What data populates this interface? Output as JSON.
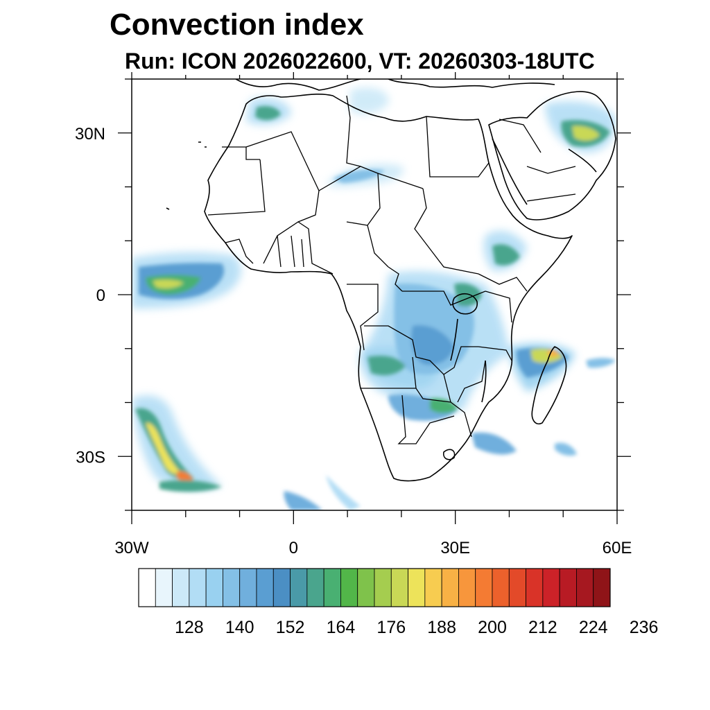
{
  "title": "Convection index",
  "subtitle": "Run: ICON 2026022600,  VT: 20260303-18UTC",
  "map": {
    "lon_range": [
      -30,
      60
    ],
    "lat_range": [
      -40,
      40
    ],
    "x_ticks": [
      {
        "value": -30,
        "label": "30W"
      },
      {
        "value": 0,
        "label": "0"
      },
      {
        "value": 30,
        "label": "30E"
      },
      {
        "value": 60,
        "label": "60E"
      }
    ],
    "y_ticks": [
      {
        "value": 30,
        "label": "30N"
      },
      {
        "value": 0,
        "label": "0"
      },
      {
        "value": -30,
        "label": "30S"
      }
    ]
  },
  "colorbar": {
    "colors": [
      "#ffffff",
      "#e8f5fc",
      "#cce9f8",
      "#b2ddf5",
      "#99d1f0",
      "#84c0e6",
      "#70afdd",
      "#5a9ed2",
      "#4b8fc4",
      "#4a9aa8",
      "#4aa58d",
      "#49b072",
      "#52b649",
      "#7fc24b",
      "#a5cd4f",
      "#c9d856",
      "#ede35a",
      "#f7cc50",
      "#f8b145",
      "#f7963c",
      "#f47b33",
      "#ec612c",
      "#e34a29",
      "#d93328",
      "#cc2228",
      "#b81b24",
      "#a61820",
      "#8f1418"
    ],
    "labels": [
      "128",
      "140",
      "152",
      "164",
      "176",
      "188",
      "200",
      "212",
      "224",
      "236"
    ]
  }
}
